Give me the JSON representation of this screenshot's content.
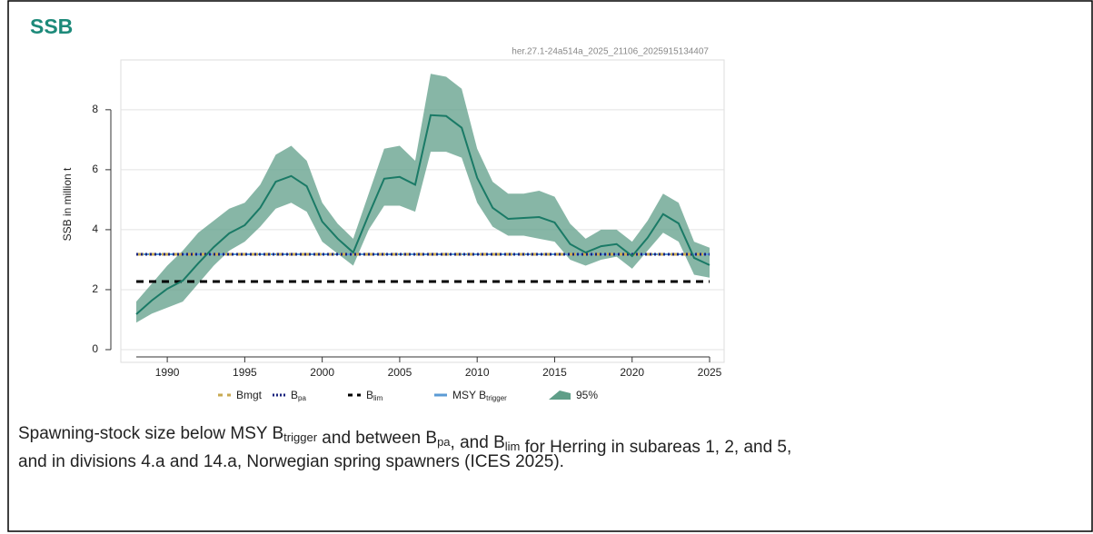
{
  "chart_data": {
    "type": "line",
    "title": "SSB",
    "subtitle": "her.27.1-24a514a_2025_21106_2025915134407",
    "y_label": "SSB in million t",
    "x": [
      1988,
      1989,
      1990,
      1991,
      1992,
      1993,
      1994,
      1995,
      1996,
      1997,
      1998,
      1999,
      2000,
      2001,
      2002,
      2003,
      2004,
      2005,
      2006,
      2007,
      2008,
      2009,
      2010,
      2011,
      2012,
      2013,
      2014,
      2015,
      2016,
      2017,
      2018,
      2019,
      2020,
      2021,
      2022,
      2023,
      2024,
      2025
    ],
    "series": [
      {
        "name": "SSB",
        "color": "#1a7a66",
        "values": [
          1.18,
          1.64,
          2.03,
          2.3,
          2.88,
          3.42,
          3.88,
          4.15,
          4.73,
          5.6,
          5.79,
          5.45,
          4.27,
          3.7,
          3.24,
          4.5,
          5.7,
          5.76,
          5.5,
          7.82,
          7.79,
          7.4,
          5.73,
          4.73,
          4.36,
          4.39,
          4.42,
          4.24,
          3.52,
          3.24,
          3.45,
          3.52,
          3.12,
          3.73,
          4.52,
          4.21,
          3.06,
          2.82
        ]
      }
    ],
    "band": {
      "label": "95%",
      "color": "#5f9e88",
      "upper": [
        1.6,
        2.2,
        2.8,
        3.3,
        3.9,
        4.3,
        4.7,
        4.9,
        5.5,
        6.5,
        6.8,
        6.3,
        4.9,
        4.2,
        3.7,
        5.2,
        6.7,
        6.8,
        6.3,
        9.2,
        9.1,
        8.7,
        6.7,
        5.6,
        5.2,
        5.2,
        5.3,
        5.1,
        4.2,
        3.7,
        4.0,
        4.0,
        3.6,
        4.3,
        5.2,
        4.9,
        3.6,
        3.4
      ],
      "lower": [
        0.9,
        1.2,
        1.4,
        1.6,
        2.2,
        2.8,
        3.3,
        3.6,
        4.1,
        4.7,
        4.9,
        4.6,
        3.6,
        3.2,
        2.8,
        4.0,
        4.8,
        4.8,
        4.6,
        6.6,
        6.6,
        6.4,
        4.9,
        4.1,
        3.8,
        3.8,
        3.7,
        3.6,
        3.0,
        2.8,
        3.0,
        3.1,
        2.7,
        3.3,
        3.9,
        3.6,
        2.5,
        2.4
      ]
    },
    "reference_lines": [
      {
        "label": "MSY B",
        "sub": "trigger",
        "value": 3.18,
        "color": "#5b9bd5",
        "style": "solid"
      },
      {
        "label": "Bmgt",
        "value": 3.18,
        "color": "#c8a951",
        "style": "dashed"
      },
      {
        "label": "B",
        "sub": "pa",
        "value": 3.18,
        "color": "#1a237e",
        "style": "dotted"
      },
      {
        "label": "B",
        "sub": "lim",
        "value": 2.27,
        "color": "#000000",
        "style": "dashed"
      }
    ],
    "xlim": [
      1988,
      2025
    ],
    "ylim": [
      0,
      9.6
    ],
    "xticks": [
      1990,
      1995,
      2000,
      2005,
      2010,
      2015,
      2020,
      2025
    ],
    "yticks": [
      0,
      2,
      4,
      6,
      8
    ],
    "grid": true
  },
  "caption": [
    {
      "text": "Spawning-stock size below MSY B"
    },
    {
      "sub": "trigger"
    },
    {
      "text": " and between B"
    },
    {
      "sub": "pa"
    },
    {
      "text": ", and B"
    },
    {
      "sub": "lim"
    },
    {
      "text": " for Herring in subareas 1, 2, and 5,"
    },
    {
      "text": "and in divisions 4.a and 14.a, Norwegian spring spawners (ICES 2025)."
    }
  ]
}
